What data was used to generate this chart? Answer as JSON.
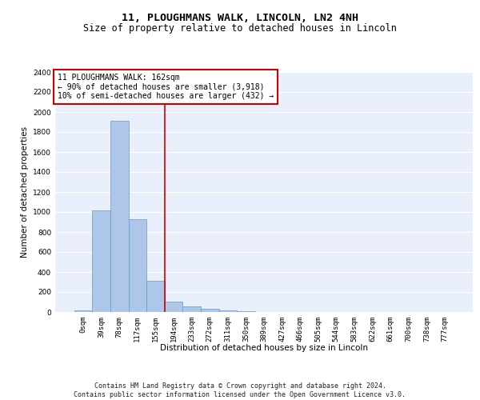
{
  "title1": "11, PLOUGHMANS WALK, LINCOLN, LN2 4NH",
  "title2": "Size of property relative to detached houses in Lincoln",
  "xlabel": "Distribution of detached houses by size in Lincoln",
  "ylabel": "Number of detached properties",
  "categories": [
    "0sqm",
    "39sqm",
    "78sqm",
    "117sqm",
    "155sqm",
    "194sqm",
    "233sqm",
    "272sqm",
    "311sqm",
    "350sqm",
    "389sqm",
    "427sqm",
    "466sqm",
    "505sqm",
    "544sqm",
    "583sqm",
    "622sqm",
    "661sqm",
    "700sqm",
    "738sqm",
    "777sqm"
  ],
  "values": [
    20,
    1020,
    1910,
    925,
    315,
    108,
    55,
    33,
    18,
    5,
    2,
    1,
    0,
    0,
    0,
    0,
    0,
    0,
    0,
    0,
    0
  ],
  "bar_color": "#aec6e8",
  "bar_edge_color": "#5b9bd5",
  "annotation_box_text": "11 PLOUGHMANS WALK: 162sqm\n← 90% of detached houses are smaller (3,918)\n10% of semi-detached houses are larger (432) →",
  "annotation_box_color": "#ffffff",
  "annotation_box_edge_color": "#cc0000",
  "vline_color": "#cc0000",
  "vline_x": 4.5,
  "ylim": [
    0,
    2400
  ],
  "yticks": [
    0,
    200,
    400,
    600,
    800,
    1000,
    1200,
    1400,
    1600,
    1800,
    2000,
    2200,
    2400
  ],
  "bg_color": "#eaf0fb",
  "grid_color": "#ffffff",
  "title1_fontsize": 9.5,
  "title2_fontsize": 8.5,
  "axis_label_fontsize": 7.5,
  "tick_fontsize": 6.5,
  "annotation_fontsize": 7,
  "footer_fontsize": 6,
  "footer_line1": "Contains HM Land Registry data © Crown copyright and database right 2024.",
  "footer_line2": "Contains public sector information licensed under the Open Government Licence v3.0."
}
